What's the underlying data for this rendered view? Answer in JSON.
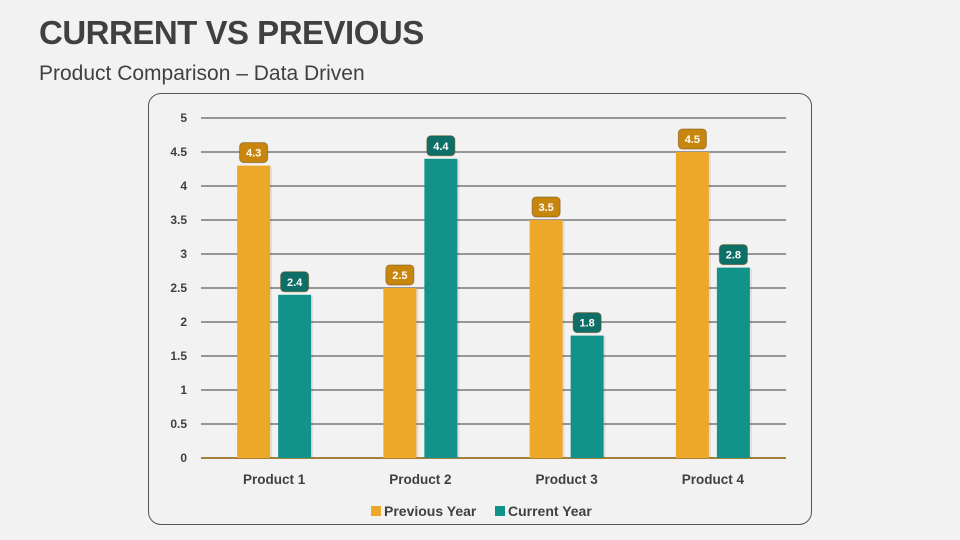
{
  "header": {
    "title": "CURRENT VS PREVIOUS",
    "subtitle": "Product Comparison – Data Driven"
  },
  "chart_data": {
    "type": "bar",
    "categories": [
      "Product 1",
      "Product 2",
      "Product 3",
      "Product 4"
    ],
    "series": [
      {
        "name": "Previous Year",
        "values": [
          4.3,
          2.5,
          3.5,
          4.5
        ],
        "color": "#eda82a",
        "label_color": "#c8860f"
      },
      {
        "name": "Current Year",
        "values": [
          2.4,
          4.4,
          1.8,
          2.8
        ],
        "color": "#12938a",
        "label_color": "#0d6f68"
      }
    ],
    "ylim": [
      0,
      5
    ],
    "yticks": [
      "0",
      "0.5",
      "1",
      "1.5",
      "2",
      "2.5",
      "3",
      "3.5",
      "4",
      "4.5",
      "5"
    ],
    "grid": true,
    "data_labels": true,
    "legend": "bottom",
    "title": "",
    "xlabel": "",
    "ylabel": ""
  }
}
